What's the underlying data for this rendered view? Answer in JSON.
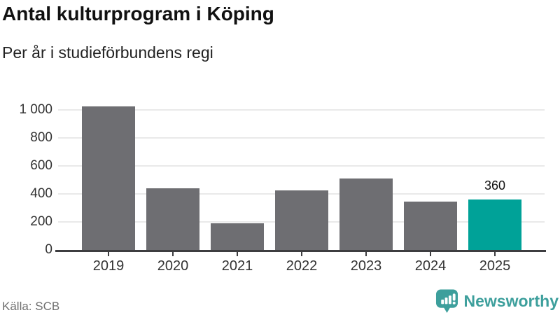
{
  "header": {
    "title": "Antal kulturprogram i Köping",
    "subtitle": "Per år i studieförbundens regi"
  },
  "chart_data": {
    "type": "bar",
    "title": "Antal kulturprogram i Köping",
    "subtitle": "Per år i studieförbundens regi",
    "categories": [
      "2019",
      "2020",
      "2021",
      "2022",
      "2023",
      "2024",
      "2025"
    ],
    "values": [
      1020,
      440,
      190,
      425,
      510,
      345,
      360
    ],
    "highlight_index": 6,
    "highlight_value_label": "360",
    "xlabel": "",
    "ylabel": "",
    "ylim": [
      0,
      1000
    ],
    "yticks": [
      0,
      200,
      400,
      600,
      800,
      1000
    ],
    "ytick_labels": [
      "0",
      "200",
      "400",
      "600",
      "800",
      "1 000"
    ],
    "grid": "horizontal",
    "legend": "none",
    "colors": {
      "bar": "#6e6e72",
      "highlight": "#00a298",
      "gridline": "#e9e9e9",
      "axis_line": "#3d3d40",
      "tick_label": "#333333"
    }
  },
  "footer": {
    "source": "Källa: SCB",
    "brand": "Newsworthy",
    "brand_color": "#3d9f9c",
    "brand_icon": "speech-bubble-bar-chart-exclamation"
  }
}
